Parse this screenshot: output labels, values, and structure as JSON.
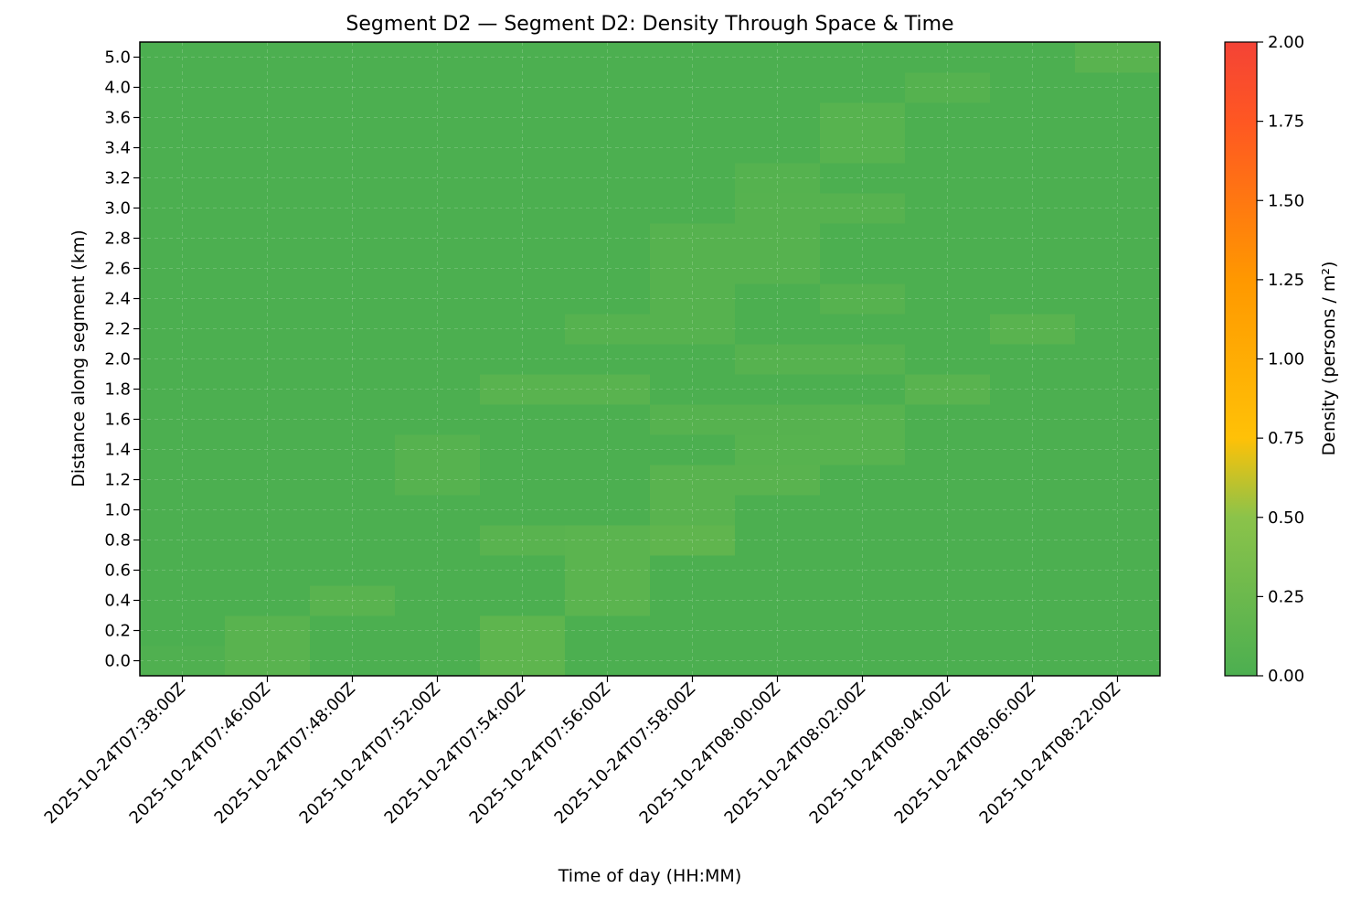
{
  "chart_data": {
    "type": "heatmap",
    "title": "Segment D2 — Segment D2: Density Through Space & Time",
    "xlabel": "Time of day (HH:MM)",
    "ylabel": "Distance along segment (km)",
    "x": [
      "2025-10-24T07:38:00Z",
      "2025-10-24T07:46:00Z",
      "2025-10-24T07:48:00Z",
      "2025-10-24T07:52:00Z",
      "2025-10-24T07:54:00Z",
      "2025-10-24T07:56:00Z",
      "2025-10-24T07:58:00Z",
      "2025-10-24T08:00:00Z",
      "2025-10-24T08:02:00Z",
      "2025-10-24T08:04:00Z",
      "2025-10-24T08:06:00Z",
      "2025-10-24T08:22:00Z"
    ],
    "y": [
      "0.0",
      "0.2",
      "0.4",
      "0.6",
      "0.8",
      "1.0",
      "1.2",
      "1.4",
      "1.6",
      "1.8",
      "2.0",
      "2.2",
      "2.4",
      "2.6",
      "2.8",
      "3.0",
      "3.2",
      "3.4",
      "3.6",
      "4.0",
      "5.0"
    ],
    "values": [
      [
        0.03,
        0.1,
        0,
        0,
        0.14,
        0,
        0,
        0,
        0,
        0,
        0,
        0
      ],
      [
        0,
        0.1,
        0,
        0,
        0.14,
        0,
        0,
        0,
        0,
        0,
        0,
        0
      ],
      [
        0,
        0,
        0.1,
        0,
        0,
        0.12,
        0,
        0,
        0,
        0,
        0,
        0
      ],
      [
        0,
        0,
        0,
        0,
        0,
        0.12,
        0,
        0,
        0,
        0,
        0,
        0
      ],
      [
        0,
        0,
        0,
        0,
        0.1,
        0.12,
        0.16,
        0,
        0,
        0,
        0,
        0
      ],
      [
        0,
        0,
        0,
        0,
        0,
        0,
        0.1,
        0,
        0,
        0,
        0,
        0
      ],
      [
        0,
        0,
        0,
        0.08,
        0,
        0,
        0.1,
        0.1,
        0,
        0,
        0,
        0
      ],
      [
        0,
        0,
        0,
        0.08,
        0,
        0,
        0,
        0.09,
        0.09,
        0,
        0,
        0
      ],
      [
        0,
        0,
        0,
        0,
        0,
        0,
        0.08,
        0.08,
        0.09,
        0,
        0,
        0
      ],
      [
        0,
        0,
        0,
        0,
        0.1,
        0.1,
        0,
        0,
        0,
        0.1,
        0,
        0
      ],
      [
        0,
        0,
        0,
        0,
        0,
        0,
        0,
        0.08,
        0.08,
        0,
        0,
        0
      ],
      [
        0,
        0,
        0,
        0,
        0,
        0.08,
        0.08,
        0,
        0,
        0,
        0.1,
        0
      ],
      [
        0,
        0,
        0,
        0,
        0,
        0,
        0.08,
        0,
        0.08,
        0,
        0,
        0
      ],
      [
        0,
        0,
        0,
        0,
        0,
        0,
        0.08,
        0.08,
        0,
        0,
        0,
        0
      ],
      [
        0,
        0,
        0,
        0,
        0,
        0,
        0.08,
        0.08,
        0,
        0,
        0,
        0
      ],
      [
        0,
        0,
        0,
        0,
        0,
        0,
        0,
        0.08,
        0.08,
        0,
        0,
        0
      ],
      [
        0,
        0,
        0,
        0,
        0,
        0,
        0,
        0.07,
        0,
        0,
        0,
        0
      ],
      [
        0,
        0,
        0,
        0,
        0,
        0,
        0,
        0,
        0.09,
        0,
        0,
        0
      ],
      [
        0,
        0,
        0,
        0,
        0,
        0,
        0,
        0,
        0.09,
        0,
        0,
        0
      ],
      [
        0,
        0,
        0,
        0,
        0,
        0,
        0,
        0,
        0,
        0.07,
        0,
        0
      ],
      [
        0,
        0,
        0,
        0,
        0,
        0,
        0,
        0,
        0,
        0,
        0,
        0.1
      ]
    ],
    "colorbar": {
      "label": "Density (persons / m²)",
      "range": [
        0,
        2
      ],
      "ticks": [
        "0.00",
        "0.25",
        "0.50",
        "0.75",
        "1.00",
        "1.25",
        "1.50",
        "1.75",
        "2.00"
      ],
      "colors": [
        [
          0.0,
          "#4caf50"
        ],
        [
          0.25,
          "#8bc34a"
        ],
        [
          0.375,
          "#ffc107"
        ],
        [
          0.625,
          "#ff9800"
        ],
        [
          0.875,
          "#ff5722"
        ],
        [
          1.0,
          "#f44336"
        ]
      ]
    },
    "grid": true
  }
}
